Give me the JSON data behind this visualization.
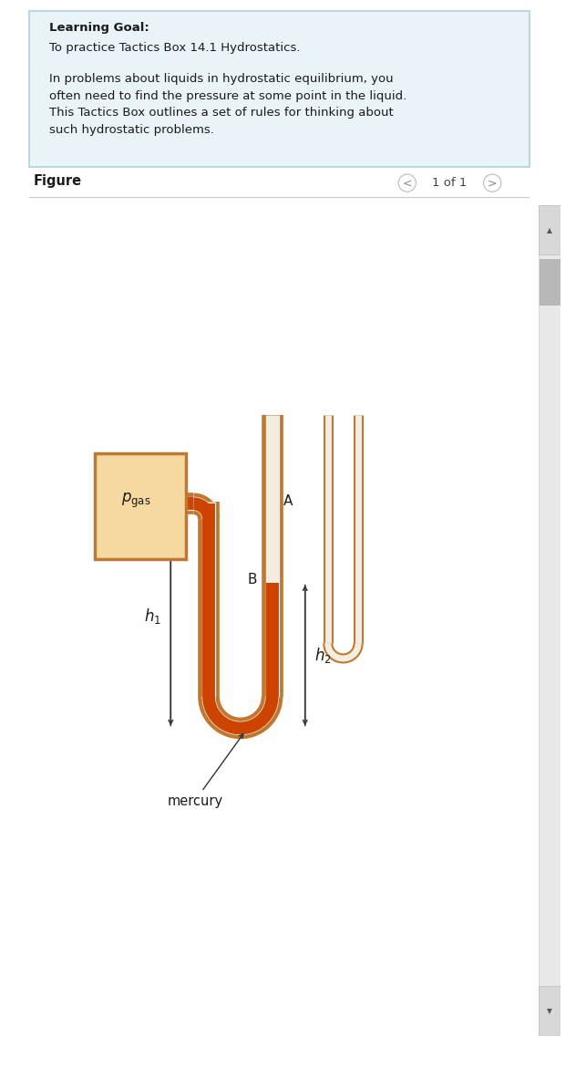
{
  "bg_color": "#ffffff",
  "text_box_bg": "#e8f4f8",
  "text_box_border": "#b0d0dc",
  "title_bold": "Learning Goal:",
  "title_normal": "To practice Tactics Box 14.1 Hydrostatics.",
  "body_text": "In problems about liquids in hydrostatic equilibrium, you\noften need to find the pressure at some point in the liquid.\nThis Tactics Box outlines a set of rules for thinking about\nsuch hydrostatic problems.",
  "figure_label": "Figure",
  "page_indicator": "1 of 1",
  "tube_outer_color": "#c07830",
  "mercury_color": "#cc4400",
  "gas_box_fill": "#f5d9a0",
  "gas_box_border": "#c07830",
  "mercury_label": "mercury",
  "scrollbar_bg": "#d0d0d0",
  "scrollbar_thumb": "#b0b0b0"
}
